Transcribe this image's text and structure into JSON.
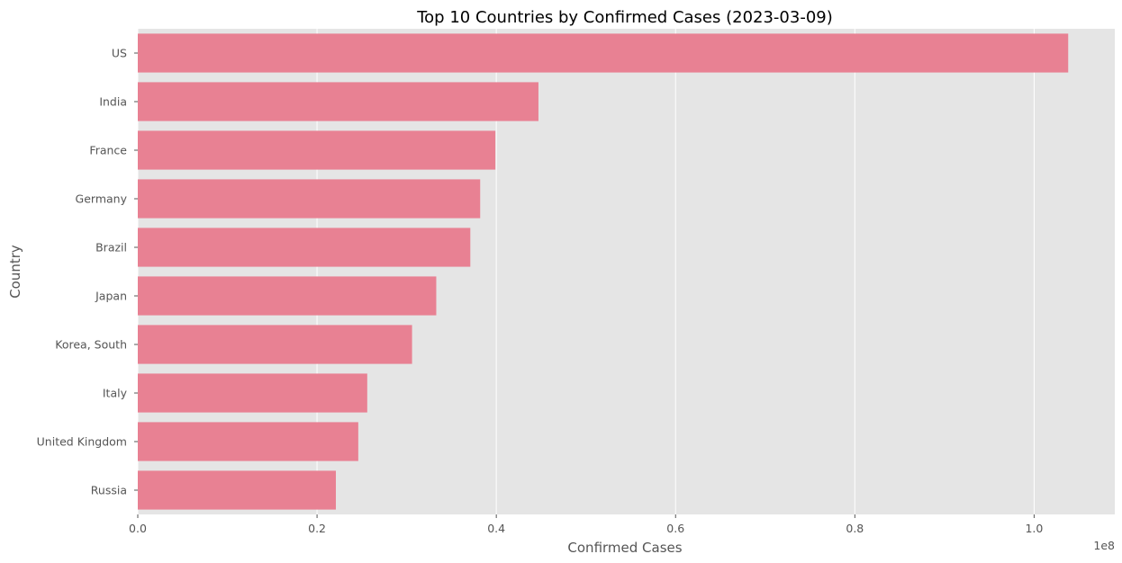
{
  "chart_data": {
    "type": "bar",
    "orientation": "horizontal",
    "title": "Top 10 Countries by Confirmed Cases (2023-03-09)",
    "xlabel": "Confirmed Cases",
    "ylabel": "Country",
    "categories": [
      "US",
      "India",
      "France",
      "Germany",
      "Brazil",
      "Japan",
      "Korea, South",
      "Italy",
      "United Kingdom",
      "Russia"
    ],
    "values": [
      103800000,
      44700000,
      39900000,
      38200000,
      37100000,
      33300000,
      30600000,
      25600000,
      24600000,
      22100000
    ],
    "xlim": [
      0,
      109000000
    ],
    "xticks": [
      0,
      20000000,
      40000000,
      60000000,
      80000000,
      100000000
    ],
    "xtick_labels": [
      "0.0",
      "0.2",
      "0.4",
      "0.6",
      "0.8",
      "1.0"
    ],
    "x_offset_label": "1e8",
    "grid": true,
    "colors": {
      "bar": "#e88193",
      "background": "#e5e5e5",
      "grid": "#ffffff",
      "text": "#555555"
    }
  }
}
